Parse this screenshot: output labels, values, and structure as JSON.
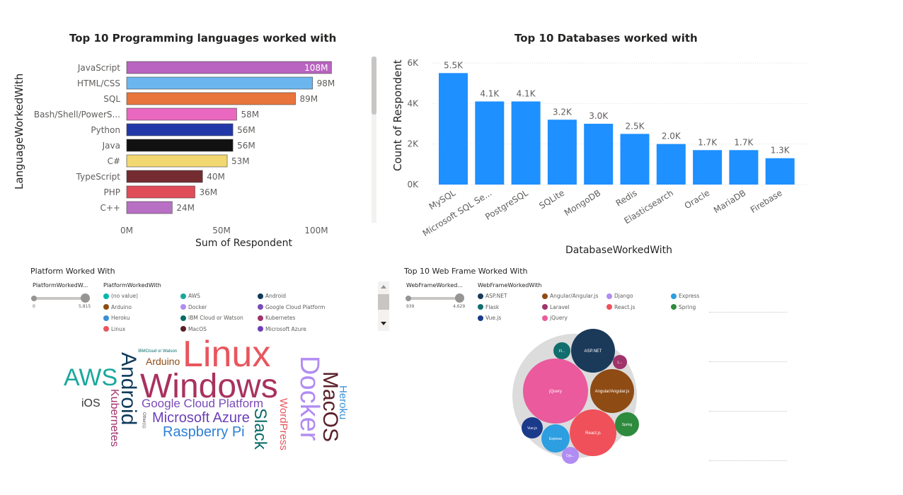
{
  "lang_chart": {
    "title": "Top 10 Programming languages worked with",
    "ylabel": "LanguageWorkedWith",
    "xlabel": "Sum of Respondent",
    "xticks": [
      "0M",
      "50M",
      "100M"
    ]
  },
  "db_chart": {
    "title": "Top 10 Databases worked with",
    "ylabel": "Count of Respondent",
    "xlabel": "DatabaseWorkedWith",
    "yticks": [
      "6K",
      "4K",
      "2K",
      "0K"
    ]
  },
  "platform": {
    "title": "Platform Worked With",
    "slider_label": "PlatformWorkedW...",
    "slider_min": "0",
    "slider_max": "5,815",
    "legend_title": "PlatformWorkedWith",
    "legend": [
      {
        "label": "(no value)",
        "color": "#01b8aa"
      },
      {
        "label": "AWS",
        "color": "#19a89c"
      },
      {
        "label": "Android",
        "color": "#0f3a5a"
      },
      {
        "label": "Arduino",
        "color": "#8e4b14"
      },
      {
        "label": "Docker",
        "color": "#b18cf2"
      },
      {
        "label": "Google Cloud Platform",
        "color": "#7b4bb9"
      },
      {
        "label": "Heroku",
        "color": "#3a8fd6"
      },
      {
        "label": "IBM Cloud or Watson",
        "color": "#0b6b6b"
      },
      {
        "label": "Kubernetes",
        "color": "#a0336b"
      },
      {
        "label": "Linux",
        "color": "#e8565e"
      },
      {
        "label": "MacOS",
        "color": "#5a1f2a"
      },
      {
        "label": "Microsoft Azure",
        "color": "#6b3fb8"
      }
    ],
    "words": [
      {
        "text": "Linux",
        "color": "#e8565e"
      },
      {
        "text": "Windows",
        "color": "#a8325f"
      },
      {
        "text": "AWS",
        "color": "#19a89c"
      },
      {
        "text": "Docker",
        "color": "#b18cf2"
      },
      {
        "text": "Android",
        "color": "#0f3a5a"
      },
      {
        "text": "MacOS",
        "color": "#5a1f2a"
      },
      {
        "text": "Arduino",
        "color": "#8e4b14"
      },
      {
        "text": "IBMCloud or Watson",
        "color": "#0b6b6b"
      },
      {
        "text": "iOS",
        "color": "#333333"
      },
      {
        "text": "Kubernetes",
        "color": "#a0336b"
      },
      {
        "text": "Google Cloud Platform",
        "color": "#7b4bb9"
      },
      {
        "text": "Microsoft Azure",
        "color": "#6b3fb8"
      },
      {
        "text": "Raspberry Pi",
        "color": "#2d7fd6"
      },
      {
        "text": "Slack",
        "color": "#0b6b6b"
      },
      {
        "text": "WordPress",
        "color": "#e8565e"
      },
      {
        "text": "Heroku",
        "color": "#3a8fd6"
      },
      {
        "text": "Other(s):",
        "color": "#555555"
      }
    ]
  },
  "webframe": {
    "title": "Top 10 Web Frame Worked With",
    "slider_label": "WebFrameWorked...",
    "slider_min": "939",
    "slider_max": "4,629",
    "legend_title": "WebFrameWorkedWith",
    "legend": [
      {
        "label": "ASP.NET",
        "color": "#1b3a5a"
      },
      {
        "label": "Angular/Angular.js",
        "color": "#8e4b14"
      },
      {
        "label": "Django",
        "color": "#b18cf2"
      },
      {
        "label": "Express",
        "color": "#2d9ee0"
      },
      {
        "label": "Flask",
        "color": "#126e6e"
      },
      {
        "label": "Laravel",
        "color": "#a0336b"
      },
      {
        "label": "React.js",
        "color": "#f0505a"
      },
      {
        "label": "Spring",
        "color": "#2e8b3e"
      },
      {
        "label": "Vue.js",
        "color": "#1b3a8a"
      },
      {
        "label": "jQuery",
        "color": "#ea5a9c"
      }
    ],
    "bubbles": [
      {
        "label": "ASP.NET",
        "color": "#1b3a5a"
      },
      {
        "label": "Fl...",
        "color": "#126e6e"
      },
      {
        "label": "L...",
        "color": "#a0336b"
      },
      {
        "label": "jQuery",
        "color": "#ea5a9c"
      },
      {
        "label": "Angular/Angular.js",
        "color": "#8e4b14"
      },
      {
        "label": "Spring",
        "color": "#2e8b3e"
      },
      {
        "label": "React.js",
        "color": "#f0505a"
      },
      {
        "label": "Vue.js",
        "color": "#1b3a8a"
      },
      {
        "label": "Express",
        "color": "#2d9ee0"
      },
      {
        "label": "Dja...",
        "color": "#b18cf2"
      }
    ]
  },
  "chart_data": [
    {
      "type": "bar",
      "orientation": "horizontal",
      "title": "Top 10 Programming languages worked with",
      "xlabel": "Sum of Respondent",
      "ylabel": "LanguageWorkedWith",
      "xlim": [
        0,
        115
      ],
      "categories": [
        "JavaScript",
        "HTML/CSS",
        "SQL",
        "Bash/Shell/PowerS...",
        "Python",
        "Java",
        "C#",
        "TypeScript",
        "PHP",
        "C++"
      ],
      "values": [
        108,
        98,
        89,
        58,
        56,
        56,
        53,
        40,
        36,
        24
      ],
      "labels": [
        "108M",
        "98M",
        "89M",
        "58M",
        "56M",
        "56M",
        "53M",
        "40M",
        "36M",
        "24M"
      ],
      "colors": [
        "#b864c0",
        "#6cb6f0",
        "#e8753c",
        "#ea68c0",
        "#2238a8",
        "#111111",
        "#f2d870",
        "#742c30",
        "#e04c58",
        "#b870c4"
      ]
    },
    {
      "type": "bar",
      "title": "Top 10 Databases worked with",
      "xlabel": "DatabaseWorkedWith",
      "ylabel": "Count of Respondent",
      "ylim": [
        0,
        6000
      ],
      "categories": [
        "MySQL",
        "Microsoft SQL Se...",
        "PostgreSQL",
        "SQLite",
        "MongoDB",
        "Redis",
        "Elasticsearch",
        "Oracle",
        "MariaDB",
        "Firebase"
      ],
      "values": [
        5500,
        4100,
        4100,
        3200,
        3000,
        2500,
        2000,
        1700,
        1700,
        1300
      ],
      "labels": [
        "5.5K",
        "4.1K",
        "4.1K",
        "3.2K",
        "3.0K",
        "2.5K",
        "2.0K",
        "1.7K",
        "1.7K",
        "1.3K"
      ],
      "color": "#1e90ff"
    }
  ]
}
